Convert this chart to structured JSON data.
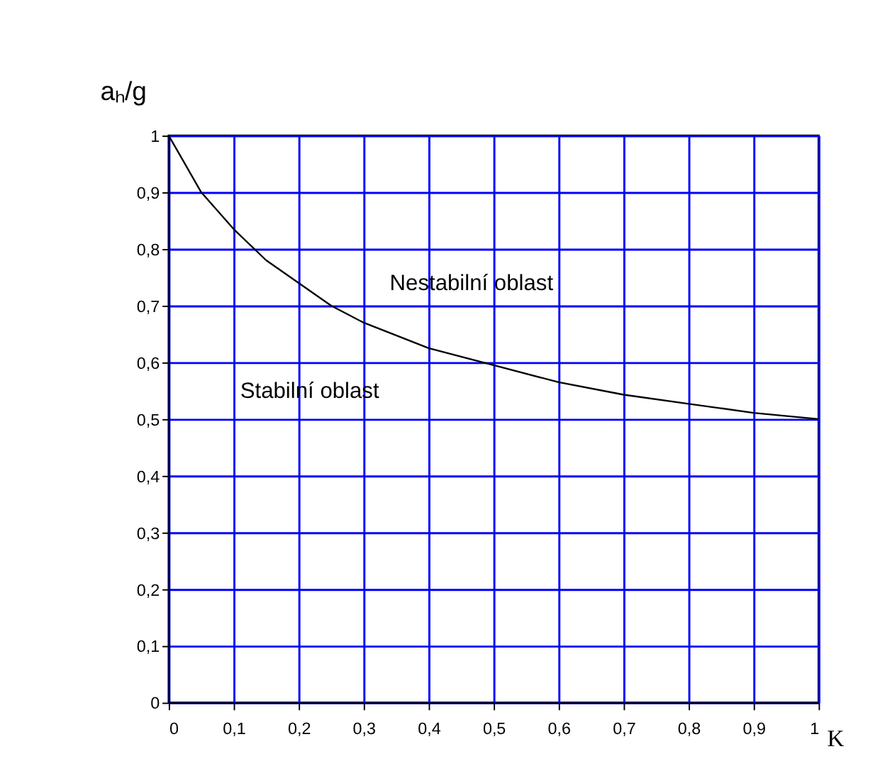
{
  "chart_data": {
    "type": "line",
    "x": [
      0,
      0.05,
      0.1,
      0.15,
      0.2,
      0.25,
      0.3,
      0.4,
      0.5,
      0.6,
      0.7,
      0.8,
      0.9,
      1
    ],
    "series": [
      {
        "color": "#000000",
        "values": [
          1,
          0.9,
          0.835,
          0.78,
          0.74,
          0.7,
          0.67,
          0.625,
          0.595,
          0.565,
          0.543,
          0.527,
          0.511,
          0.5
        ]
      }
    ],
    "xlabel": "K",
    "ylabel": "aₕ/g",
    "annotations": [
      "Nestabilní oblast",
      "Stabilní oblast"
    ],
    "xlim": [
      0,
      1
    ],
    "ylim": [
      0,
      1
    ],
    "xticks": [
      0,
      {
        "value": 0.1,
        "label": "0,1"
      },
      {
        "value": 0.2,
        "label": "0,2"
      },
      {
        "value": 0.3,
        "label": "0,3"
      },
      {
        "value": 0.4,
        "label": "0,4"
      },
      {
        "value": 0.5,
        "label": "0,5"
      },
      {
        "value": 0.6,
        "label": "0,6"
      },
      {
        "value": 0.7,
        "label": "0,7"
      },
      {
        "value": 0.8,
        "label": "0,8"
      },
      {
        "value": 0.9,
        "label": "0,9"
      },
      1
    ],
    "yticks": [
      0,
      {
        "value": 0.1,
        "label": "0,1"
      },
      {
        "value": 0.2,
        "label": "0,2"
      },
      {
        "value": 0.3,
        "label": "0,3"
      },
      {
        "value": 0.4,
        "label": "0,4"
      },
      {
        "value": 0.5,
        "label": "0,5"
      },
      {
        "value": 0.6,
        "label": "0,6"
      },
      {
        "value": 0.7,
        "label": "0,7"
      },
      {
        "value": 0.8,
        "label": "0,8"
      },
      {
        "value": 0.9,
        "label": "0,9"
      },
      1
    ],
    "grid": true,
    "line_style": "solid",
    "marker": "none"
  }
}
